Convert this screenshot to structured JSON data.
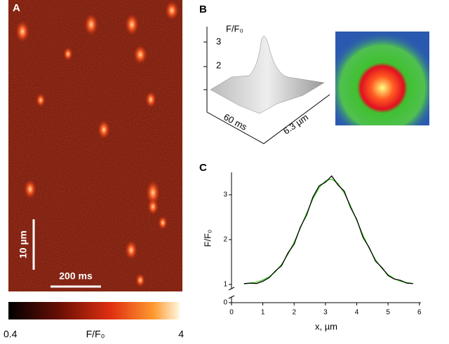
{
  "panel_a": {
    "label": "A",
    "scale_y": "10 µm",
    "scale_x": "200 ms",
    "colorbar": {
      "min": "0.4",
      "label": "F/F₀",
      "max": "4"
    }
  },
  "panel_b": {
    "label": "B",
    "z_label": "F/F₀",
    "z_ticks": [
      "3",
      "2"
    ],
    "t_label": "60 ms",
    "x_label": "6.3 µm"
  },
  "panel_c": {
    "label": "C"
  },
  "chart_data": {
    "type": "line",
    "xlabel": "x, µm",
    "ylabel": "F/F₀",
    "x": [
      0.4,
      0.6,
      0.8,
      1.0,
      1.2,
      1.4,
      1.6,
      1.8,
      2.0,
      2.2,
      2.4,
      2.6,
      2.8,
      3.0,
      3.2,
      3.4,
      3.6,
      3.8,
      4.0,
      4.2,
      4.4,
      4.6,
      4.8,
      5.0,
      5.2,
      5.4,
      5.6,
      5.8
    ],
    "series": [
      {
        "color": "#000000",
        "values": [
          1.02,
          1.03,
          1.02,
          1.07,
          1.15,
          1.3,
          1.42,
          1.7,
          1.9,
          2.28,
          2.55,
          2.95,
          3.2,
          3.28,
          3.42,
          3.22,
          3.08,
          2.72,
          2.45,
          2.05,
          1.82,
          1.52,
          1.38,
          1.2,
          1.12,
          1.09,
          1.03,
          1.02
        ]
      },
      {
        "color": "#44cc22",
        "values": [
          1.01,
          1.03,
          1.05,
          1.1,
          1.17,
          1.28,
          1.45,
          1.67,
          1.94,
          2.26,
          2.59,
          2.91,
          3.16,
          3.31,
          3.35,
          3.25,
          3.04,
          2.76,
          2.43,
          2.1,
          1.8,
          1.55,
          1.36,
          1.22,
          1.13,
          1.07,
          1.04,
          1.02
        ]
      }
    ],
    "xlim": [
      0,
      6.05
    ],
    "ylim": [
      0,
      3.5
    ],
    "xticks": [
      0,
      1,
      2,
      3,
      4,
      5,
      6
    ],
    "yticks": [
      0,
      1,
      2,
      3
    ],
    "y_break": true
  }
}
